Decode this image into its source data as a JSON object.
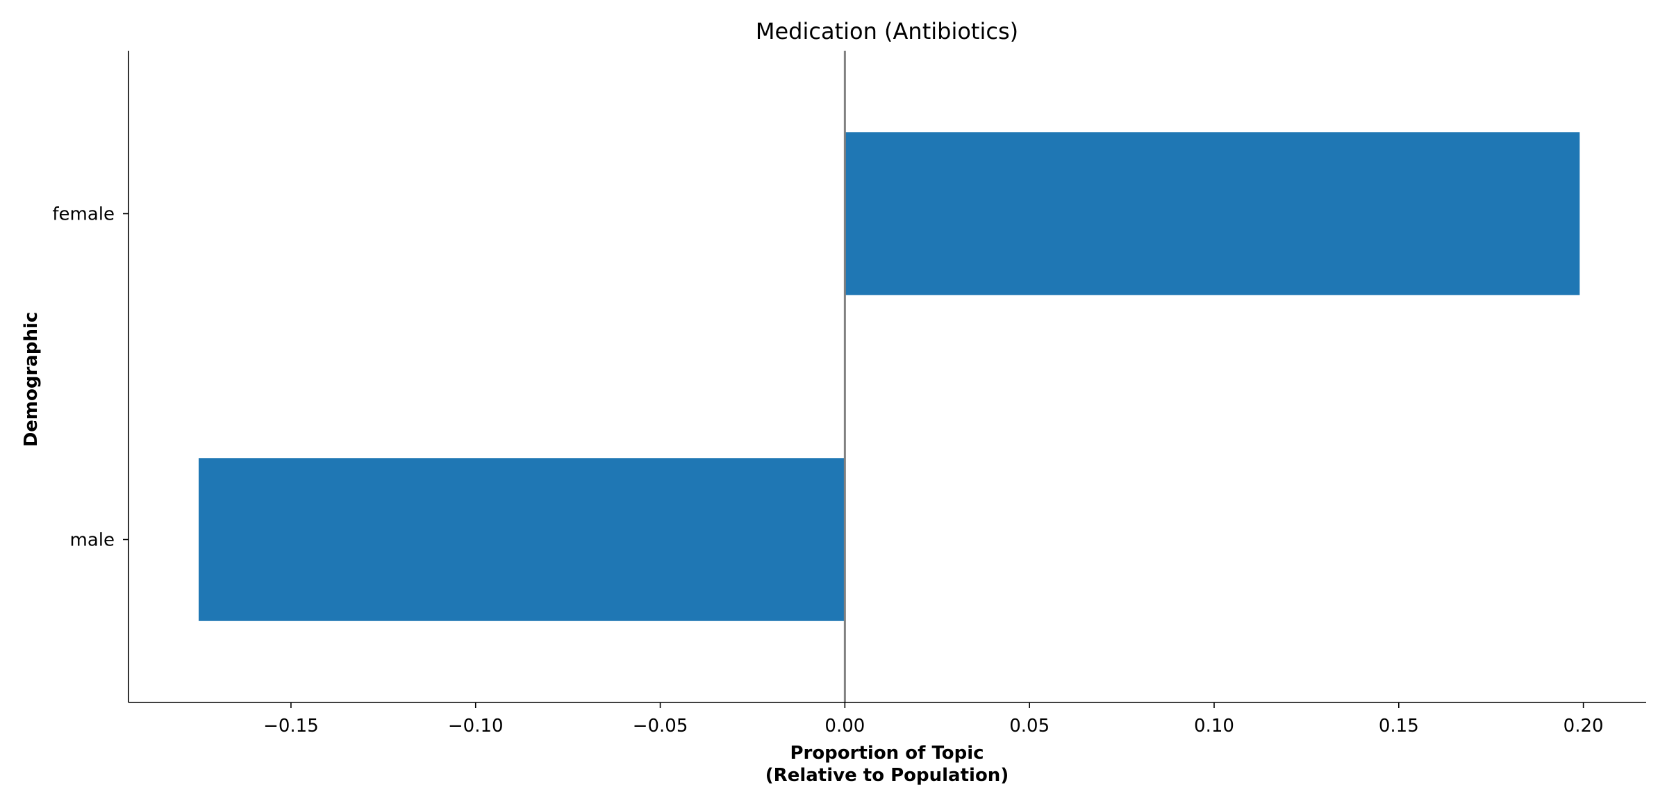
{
  "chart_data": {
    "type": "bar",
    "orientation": "horizontal",
    "title": "Medication (Antibiotics)",
    "xlabel": "Proportion of Topic",
    "xlabel_line2": "(Relative to Population)",
    "ylabel": "Demographic",
    "categories": [
      "female",
      "male"
    ],
    "values": [
      0.199,
      -0.175
    ],
    "xlim": [
      -0.194,
      0.217
    ],
    "xticks": [
      -0.15,
      -0.1,
      -0.05,
      0.0,
      0.05,
      0.1,
      0.15,
      0.2
    ],
    "xtick_labels": [
      "−0.15",
      "−0.10",
      "−0.05",
      "0.00",
      "0.05",
      "0.10",
      "0.15",
      "0.20"
    ],
    "zero_line": true,
    "grid": false,
    "legend": "none",
    "bar_color": "#1f77b4",
    "zero_line_color": "#808080"
  }
}
